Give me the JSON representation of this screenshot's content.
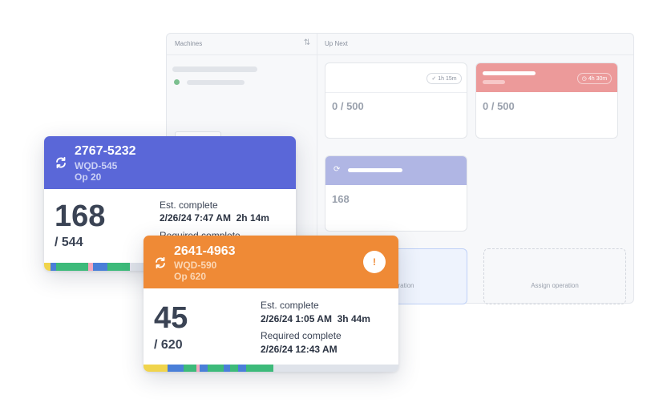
{
  "board": {
    "machines_header": "Machines",
    "up_next_header": "Up Next",
    "sort_icon": "sort-arrows-icon",
    "mini_cards": [
      {
        "pill": "1h 15m",
        "value": "0 / 500"
      },
      {
        "pill": "4h 30m",
        "value": "0 / 500",
        "accent": "#ec9a9a"
      },
      {
        "value": "168",
        "accent": "#b0b6e4"
      }
    ],
    "assign_label": "Assign operation",
    "assign_partial_label": "eration"
  },
  "card_blue": {
    "accent": "#5a67d8",
    "icon": "sync-icon",
    "title": "2767-5232",
    "part": "WQD-545",
    "op": "Op 20",
    "count": "168",
    "total": "/ 544",
    "est_label": "Est. complete",
    "est_value": "2/26/24 7:47 AM  2h 14m",
    "req_label": "Required complete"
  },
  "card_orange": {
    "accent": "#ef8a36",
    "icon": "sync-icon",
    "alert_icon": "alert-icon",
    "alert_text": "!",
    "title": "2641-4963",
    "part": "WQD-590",
    "op": "Op 620",
    "count": "45",
    "total": "/ 620",
    "est_label": "Est. complete",
    "est_value": "2/26/24 1:05 AM  3h 44m",
    "req_label": "Required complete",
    "req_value": "2/26/24 12:43 AM"
  }
}
